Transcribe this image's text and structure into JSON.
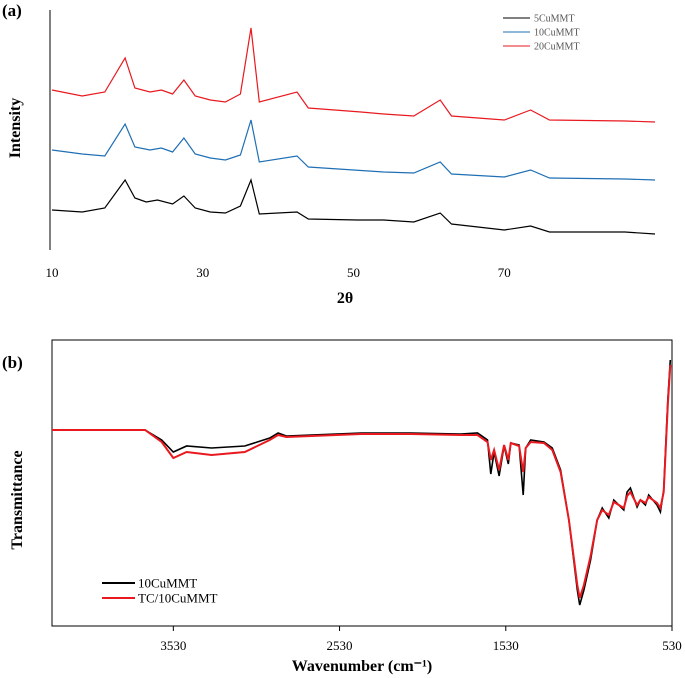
{
  "chart_data": [
    {
      "type": "line",
      "panel_label": "(a)",
      "xlabel": "2θ",
      "ylabel": "Intensity",
      "xlim": [
        10,
        90
      ],
      "xticks": [
        10,
        30,
        50,
        70
      ],
      "x_tick_labels": [
        "10",
        "30",
        "50",
        "70"
      ],
      "grid": false,
      "legend_position": "top-right",
      "series": [
        {
          "name": "5CuMMT",
          "color": "#000000",
          "points": [
            [
              10,
              210
            ],
            [
              14,
              212
            ],
            [
              17,
              208
            ],
            [
              19.7,
              180
            ],
            [
              21,
              198
            ],
            [
              22.5,
              202
            ],
            [
              24,
              200
            ],
            [
              26,
              204
            ],
            [
              27.5,
              196
            ],
            [
              29,
              208
            ],
            [
              31,
              212
            ],
            [
              33,
              213
            ],
            [
              35,
              206
            ],
            [
              36.4,
              180
            ],
            [
              37.5,
              214
            ],
            [
              42.5,
              212
            ],
            [
              44,
              219
            ],
            [
              50.5,
              220
            ],
            [
              54,
              220
            ],
            [
              58,
              222
            ],
            [
              61.5,
              213
            ],
            [
              63,
              224
            ],
            [
              70,
              230
            ],
            [
              73.5,
              226
            ],
            [
              76,
              232
            ],
            [
              86,
              232
            ],
            [
              90,
              234
            ]
          ]
        },
        {
          "name": "10CuMMT",
          "color": "#1f6fb4",
          "points": [
            [
              10,
              150
            ],
            [
              14,
              154
            ],
            [
              17,
              156
            ],
            [
              19.7,
              124
            ],
            [
              21,
              147
            ],
            [
              23,
              150
            ],
            [
              24.5,
              148
            ],
            [
              26,
              152
            ],
            [
              27.5,
              138
            ],
            [
              29,
              154
            ],
            [
              31,
              158
            ],
            [
              33,
              160
            ],
            [
              35,
              155
            ],
            [
              36.4,
              120
            ],
            [
              37.5,
              162
            ],
            [
              42.5,
              156
            ],
            [
              44,
              167
            ],
            [
              50,
              170
            ],
            [
              54,
              172
            ],
            [
              58,
              173
            ],
            [
              61.5,
              162
            ],
            [
              63,
              174
            ],
            [
              70,
              177
            ],
            [
              73.5,
              170
            ],
            [
              76,
              178
            ],
            [
              86,
              179
            ],
            [
              90,
              180
            ]
          ]
        },
        {
          "name": "20CuMMT",
          "color": "#e8191f",
          "points": [
            [
              10,
              90
            ],
            [
              14,
              96
            ],
            [
              17,
              92
            ],
            [
              19.7,
              58
            ],
            [
              21,
              88
            ],
            [
              23,
              92
            ],
            [
              24.5,
              90
            ],
            [
              26,
              94
            ],
            [
              27.5,
              80
            ],
            [
              29,
              96
            ],
            [
              31,
              100
            ],
            [
              33,
              102
            ],
            [
              35,
              94
            ],
            [
              36.4,
              28
            ],
            [
              37.5,
              102
            ],
            [
              42.5,
              92
            ],
            [
              44,
              108
            ],
            [
              51,
              112
            ],
            [
              54,
              114
            ],
            [
              58,
              116
            ],
            [
              61.5,
              100
            ],
            [
              63,
              116
            ],
            [
              70,
              120
            ],
            [
              73.5,
              110
            ],
            [
              76,
              120
            ],
            [
              86,
              121
            ],
            [
              90,
              122
            ]
          ]
        }
      ]
    },
    {
      "type": "line",
      "panel_label": "(b)",
      "xlabel": "Wavenumber (cm⁻¹)",
      "ylabel": "Transmittance",
      "xlim": [
        4260,
        530
      ],
      "xticks": [
        3530,
        2530,
        1530,
        530
      ],
      "x_tick_labels": [
        "3530",
        "2530",
        "1530",
        "530"
      ],
      "grid": false,
      "legend_position": "bottom-left",
      "series": [
        {
          "name": "10CuMMT",
          "color": "#000000",
          "points": [
            [
              4260,
              430
            ],
            [
              3700,
              430
            ],
            [
              3600,
              440
            ],
            [
              3530,
              452
            ],
            [
              3450,
              446
            ],
            [
              3300,
              448
            ],
            [
              3100,
              446
            ],
            [
              2950,
              438
            ],
            [
              2900,
              433
            ],
            [
              2850,
              436
            ],
            [
              2700,
              435
            ],
            [
              2400,
              433
            ],
            [
              2100,
              433
            ],
            [
              1800,
              434
            ],
            [
              1700,
              433
            ],
            [
              1640,
              440
            ],
            [
              1620,
              474
            ],
            [
              1600,
              452
            ],
            [
              1570,
              476
            ],
            [
              1540,
              446
            ],
            [
              1515,
              464
            ],
            [
              1500,
              443
            ],
            [
              1450,
              445
            ],
            [
              1425,
              495
            ],
            [
              1410,
              448
            ],
            [
              1380,
              440
            ],
            [
              1300,
              442
            ],
            [
              1250,
              448
            ],
            [
              1200,
              470
            ],
            [
              1150,
              520
            ],
            [
              1100,
              590
            ],
            [
              1085,
              605
            ],
            [
              1060,
              590
            ],
            [
              1020,
              560
            ],
            [
              980,
              520
            ],
            [
              950,
              508
            ],
            [
              910,
              518
            ],
            [
              880,
              500
            ],
            [
              820,
              510
            ],
            [
              800,
              492
            ],
            [
              780,
              488
            ],
            [
              740,
              507
            ],
            [
              720,
              500
            ],
            [
              690,
              505
            ],
            [
              670,
              495
            ],
            [
              620,
              505
            ],
            [
              600,
              512
            ],
            [
              580,
              490
            ],
            [
              555,
              400
            ],
            [
              540,
              360
            ]
          ]
        },
        {
          "name": "TC/10CuMMT",
          "color": "#e8191f",
          "points": [
            [
              4260,
              430
            ],
            [
              3700,
              430
            ],
            [
              3600,
              442
            ],
            [
              3530,
              458
            ],
            [
              3450,
              452
            ],
            [
              3300,
              455
            ],
            [
              3100,
              452
            ],
            [
              2950,
              440
            ],
            [
              2900,
              435
            ],
            [
              2850,
              437
            ],
            [
              2700,
              436
            ],
            [
              2400,
              434
            ],
            [
              2100,
              434
            ],
            [
              1800,
              435
            ],
            [
              1700,
              435
            ],
            [
              1640,
              442
            ],
            [
              1620,
              460
            ],
            [
              1600,
              450
            ],
            [
              1570,
              470
            ],
            [
              1540,
              445
            ],
            [
              1515,
              460
            ],
            [
              1500,
              443
            ],
            [
              1450,
              446
            ],
            [
              1425,
              472
            ],
            [
              1410,
              448
            ],
            [
              1380,
              442
            ],
            [
              1300,
              443
            ],
            [
              1250,
              450
            ],
            [
              1200,
              472
            ],
            [
              1150,
              520
            ],
            [
              1100,
              585
            ],
            [
              1085,
              598
            ],
            [
              1060,
              585
            ],
            [
              1020,
              556
            ],
            [
              980,
              520
            ],
            [
              950,
              510
            ],
            [
              910,
              515
            ],
            [
              880,
              502
            ],
            [
              820,
              508
            ],
            [
              800,
              496
            ],
            [
              780,
              492
            ],
            [
              740,
              505
            ],
            [
              720,
              500
            ],
            [
              690,
              503
            ],
            [
              670,
              497
            ],
            [
              620,
              503
            ],
            [
              600,
              508
            ],
            [
              580,
              492
            ],
            [
              555,
              405
            ],
            [
              540,
              365
            ]
          ]
        }
      ]
    }
  ]
}
